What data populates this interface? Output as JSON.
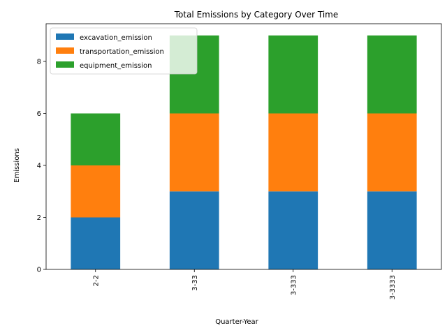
{
  "chart_data": {
    "type": "bar",
    "stacked": true,
    "title": "Total Emissions by Category Over Time",
    "xlabel": "Quarter-Year",
    "ylabel": "Emissions",
    "categories": [
      "2-2",
      "3-33",
      "3-333",
      "3-3333"
    ],
    "series": [
      {
        "name": "excavation_emission",
        "values": [
          2,
          3,
          3,
          3
        ],
        "color": "#1f77b4"
      },
      {
        "name": "transportation_emission",
        "values": [
          2,
          3,
          3,
          3
        ],
        "color": "#ff7f0e"
      },
      {
        "name": "equipment_emission",
        "values": [
          2,
          3,
          3,
          3
        ],
        "color": "#2ca02c"
      }
    ],
    "ylim": [
      0,
      9.45
    ],
    "yticks": [
      0,
      2,
      4,
      6,
      8
    ],
    "legend": "top-left",
    "grid": false
  }
}
